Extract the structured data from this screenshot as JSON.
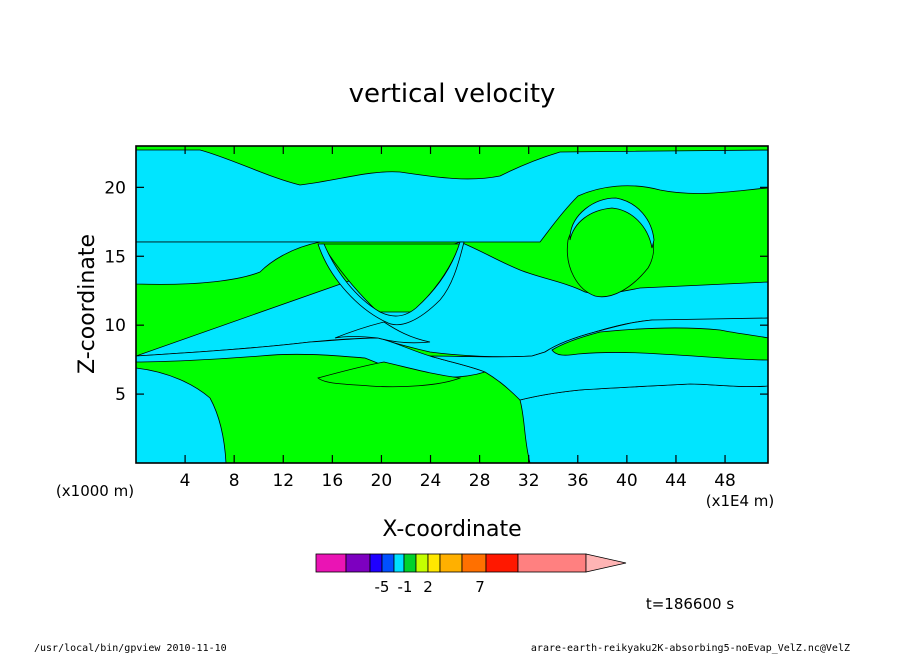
{
  "chart_data": {
    "type": "heatmap",
    "title": "vertical velocity",
    "xlabel": "X-coordinate",
    "ylabel": "Z-coordinate",
    "x_unit": "(x1E4 m)",
    "y_unit": "(x1000 m)",
    "xlim": [
      0,
      51.5
    ],
    "ylim": [
      0,
      23
    ],
    "x_ticks": [
      4,
      8,
      12,
      16,
      20,
      24,
      28,
      32,
      36,
      40,
      44,
      48
    ],
    "y_ticks": [
      5,
      10,
      15,
      20
    ],
    "field_colors": {
      "positive": "#00ff00",
      "negative": "#00e5ff"
    },
    "colorbar": {
      "colors": [
        "#ea14b4",
        "#7d00c0",
        "#1f00ff",
        "#0050ff",
        "#00e0ff",
        "#00d22b",
        "#c4ff00",
        "#ffe800",
        "#ffb000",
        "#ff7000",
        "#ff1800",
        "#ff8080",
        "#ffb4b4"
      ],
      "tick_labels": [
        {
          "label": "-5",
          "index": 2
        },
        {
          "label": "-1",
          "index": 4
        },
        {
          "label": "2",
          "index": 6
        },
        {
          "label": "7",
          "index": 9
        }
      ]
    },
    "time_label": "t=186600 s"
  },
  "footer": {
    "left": "/usr/local/bin/gpview  2010-11-10",
    "right": "arare-earth-reikyaku2K-absorbing5-noEvap_VelZ.nc@VelZ"
  }
}
